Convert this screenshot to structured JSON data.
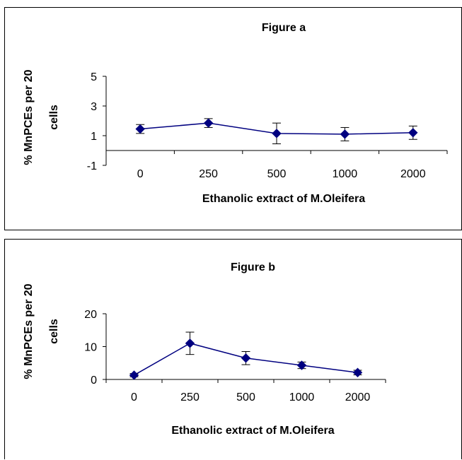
{
  "colors": {
    "series": "#000080",
    "axis": "#000000"
  },
  "chart_data": [
    {
      "type": "line",
      "title": "Figure a",
      "xlabel": "Ethanolic extract of M.Oleifera",
      "ylabel_line1": "% MnPCEs per 20",
      "ylabel_line2": "cells",
      "categories": [
        "0",
        "250",
        "500",
        "1000",
        "2000"
      ],
      "yticks": [
        "5",
        "3",
        "1",
        "-1"
      ],
      "ylim": [
        -1,
        5
      ],
      "series": [
        {
          "values": [
            1.45,
            1.85,
            1.15,
            1.1,
            1.2
          ],
          "errors": [
            0.3,
            0.3,
            0.7,
            0.45,
            0.45
          ]
        }
      ]
    },
    {
      "type": "line",
      "title": "Figure b",
      "xlabel": "Ethanolic extract of M.Oleifera",
      "ylabel_line1": "% MnPCEs per 20",
      "ylabel_line2": "cells",
      "categories": [
        "0",
        "250",
        "500",
        "1000",
        "2000"
      ],
      "yticks": [
        "20",
        "10",
        "0"
      ],
      "ylim": [
        0,
        20
      ],
      "series": [
        {
          "values": [
            1.3,
            11,
            6.5,
            4.3,
            2.1
          ],
          "errors": [
            0.5,
            3.4,
            2.0,
            1.0,
            0.7
          ]
        }
      ]
    }
  ]
}
